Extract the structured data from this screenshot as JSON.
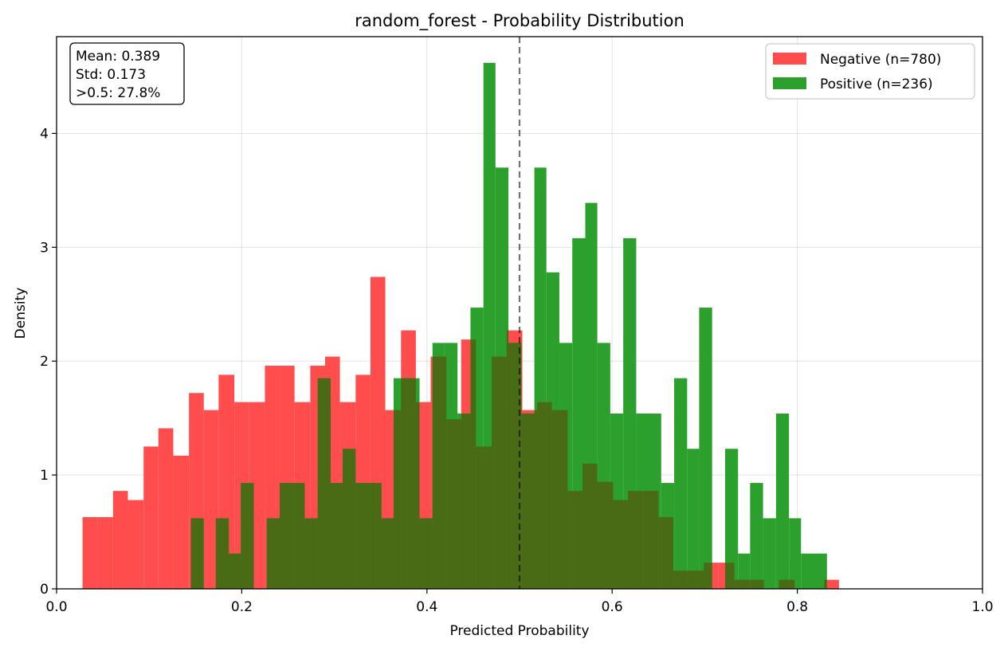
{
  "chart_data": {
    "type": "histogram",
    "title": "random_forest - Probability Distribution",
    "xlabel": "Predicted Probability",
    "ylabel": "Density",
    "xlim": [
      0.0,
      1.0
    ],
    "ylim": [
      0,
      4.85
    ],
    "x_ticks": [
      "0.0",
      "0.2",
      "0.4",
      "0.6",
      "0.8",
      "1.0"
    ],
    "y_ticks": [
      "0",
      "1",
      "2",
      "3",
      "4"
    ],
    "grid": true,
    "legend_position": "top-right",
    "threshold_line": 0.5,
    "stats_box": {
      "mean": "Mean: 0.389",
      "std": "Std: 0.173",
      "above": ">0.5: 27.8%"
    },
    "series": [
      {
        "name": "Negative (n=780)",
        "color": "#ff4d4d",
        "bins": [
          [
            0.028,
            0.044,
            0.63
          ],
          [
            0.044,
            0.061,
            0.63
          ],
          [
            0.061,
            0.077,
            0.86
          ],
          [
            0.077,
            0.094,
            0.78
          ],
          [
            0.094,
            0.11,
            1.25
          ],
          [
            0.11,
            0.126,
            1.41
          ],
          [
            0.126,
            0.143,
            1.17
          ],
          [
            0.143,
            0.159,
            1.72
          ],
          [
            0.159,
            0.175,
            1.57
          ],
          [
            0.175,
            0.192,
            1.88
          ],
          [
            0.192,
            0.208,
            1.64
          ],
          [
            0.208,
            0.225,
            1.64
          ],
          [
            0.225,
            0.241,
            1.96
          ],
          [
            0.241,
            0.257,
            1.96
          ],
          [
            0.257,
            0.274,
            1.64
          ],
          [
            0.274,
            0.29,
            1.96
          ],
          [
            0.29,
            0.306,
            2.04
          ],
          [
            0.306,
            0.323,
            1.64
          ],
          [
            0.323,
            0.339,
            1.88
          ],
          [
            0.339,
            0.355,
            2.74
          ],
          [
            0.355,
            0.372,
            1.57
          ],
          [
            0.372,
            0.388,
            2.27
          ],
          [
            0.388,
            0.404,
            1.64
          ],
          [
            0.404,
            0.421,
            2.04
          ],
          [
            0.421,
            0.437,
            1.49
          ],
          [
            0.437,
            0.453,
            2.19
          ],
          [
            0.453,
            0.47,
            1.25
          ],
          [
            0.47,
            0.486,
            2.04
          ],
          [
            0.486,
            0.503,
            2.27
          ],
          [
            0.503,
            0.519,
            1.57
          ],
          [
            0.519,
            0.535,
            1.64
          ],
          [
            0.535,
            0.552,
            1.57
          ],
          [
            0.552,
            0.568,
            0.86
          ],
          [
            0.568,
            0.584,
            1.1
          ],
          [
            0.584,
            0.601,
            0.94
          ],
          [
            0.601,
            0.617,
            0.78
          ],
          [
            0.617,
            0.634,
            0.86
          ],
          [
            0.634,
            0.65,
            0.86
          ],
          [
            0.65,
            0.666,
            0.63
          ],
          [
            0.666,
            0.683,
            0.16
          ],
          [
            0.683,
            0.699,
            0.16
          ],
          [
            0.699,
            0.715,
            0.23
          ],
          [
            0.715,
            0.732,
            0.23
          ],
          [
            0.732,
            0.748,
            0.08
          ],
          [
            0.748,
            0.764,
            0.08
          ],
          [
            0.78,
            0.797,
            0.08
          ],
          [
            0.829,
            0.845,
            0.08
          ]
        ]
      },
      {
        "name": "Positive (n=236)",
        "color": "#2ca02c",
        "bins": [
          [
            0.145,
            0.159,
            0.62
          ],
          [
            0.172,
            0.186,
            0.62
          ],
          [
            0.186,
            0.199,
            0.31
          ],
          [
            0.199,
            0.213,
            0.93
          ],
          [
            0.227,
            0.241,
            0.62
          ],
          [
            0.241,
            0.254,
            0.93
          ],
          [
            0.254,
            0.268,
            0.93
          ],
          [
            0.268,
            0.282,
            0.62
          ],
          [
            0.282,
            0.296,
            1.85
          ],
          [
            0.296,
            0.309,
            0.93
          ],
          [
            0.309,
            0.323,
            1.23
          ],
          [
            0.323,
            0.337,
            0.93
          ],
          [
            0.337,
            0.351,
            0.93
          ],
          [
            0.351,
            0.364,
            0.62
          ],
          [
            0.364,
            0.378,
            1.85
          ],
          [
            0.378,
            0.392,
            1.85
          ],
          [
            0.392,
            0.406,
            0.62
          ],
          [
            0.406,
            0.419,
            2.16
          ],
          [
            0.419,
            0.433,
            2.16
          ],
          [
            0.433,
            0.447,
            1.54
          ],
          [
            0.447,
            0.461,
            2.47
          ],
          [
            0.461,
            0.474,
            4.62
          ],
          [
            0.474,
            0.488,
            3.7
          ],
          [
            0.488,
            0.502,
            2.16
          ],
          [
            0.502,
            0.516,
            1.54
          ],
          [
            0.516,
            0.529,
            3.7
          ],
          [
            0.529,
            0.543,
            2.78
          ],
          [
            0.543,
            0.557,
            2.16
          ],
          [
            0.557,
            0.571,
            3.08
          ],
          [
            0.571,
            0.584,
            3.39
          ],
          [
            0.584,
            0.598,
            2.16
          ],
          [
            0.598,
            0.612,
            1.54
          ],
          [
            0.612,
            0.626,
            3.08
          ],
          [
            0.626,
            0.639,
            1.54
          ],
          [
            0.639,
            0.653,
            1.54
          ],
          [
            0.653,
            0.667,
            0.93
          ],
          [
            0.667,
            0.681,
            1.85
          ],
          [
            0.681,
            0.694,
            1.23
          ],
          [
            0.694,
            0.708,
            2.47
          ],
          [
            0.722,
            0.736,
            1.23
          ],
          [
            0.736,
            0.749,
            0.31
          ],
          [
            0.749,
            0.763,
            0.93
          ],
          [
            0.763,
            0.777,
            0.62
          ],
          [
            0.777,
            0.791,
            1.54
          ],
          [
            0.791,
            0.804,
            0.62
          ],
          [
            0.804,
            0.818,
            0.31
          ],
          [
            0.818,
            0.832,
            0.31
          ]
        ]
      }
    ]
  }
}
